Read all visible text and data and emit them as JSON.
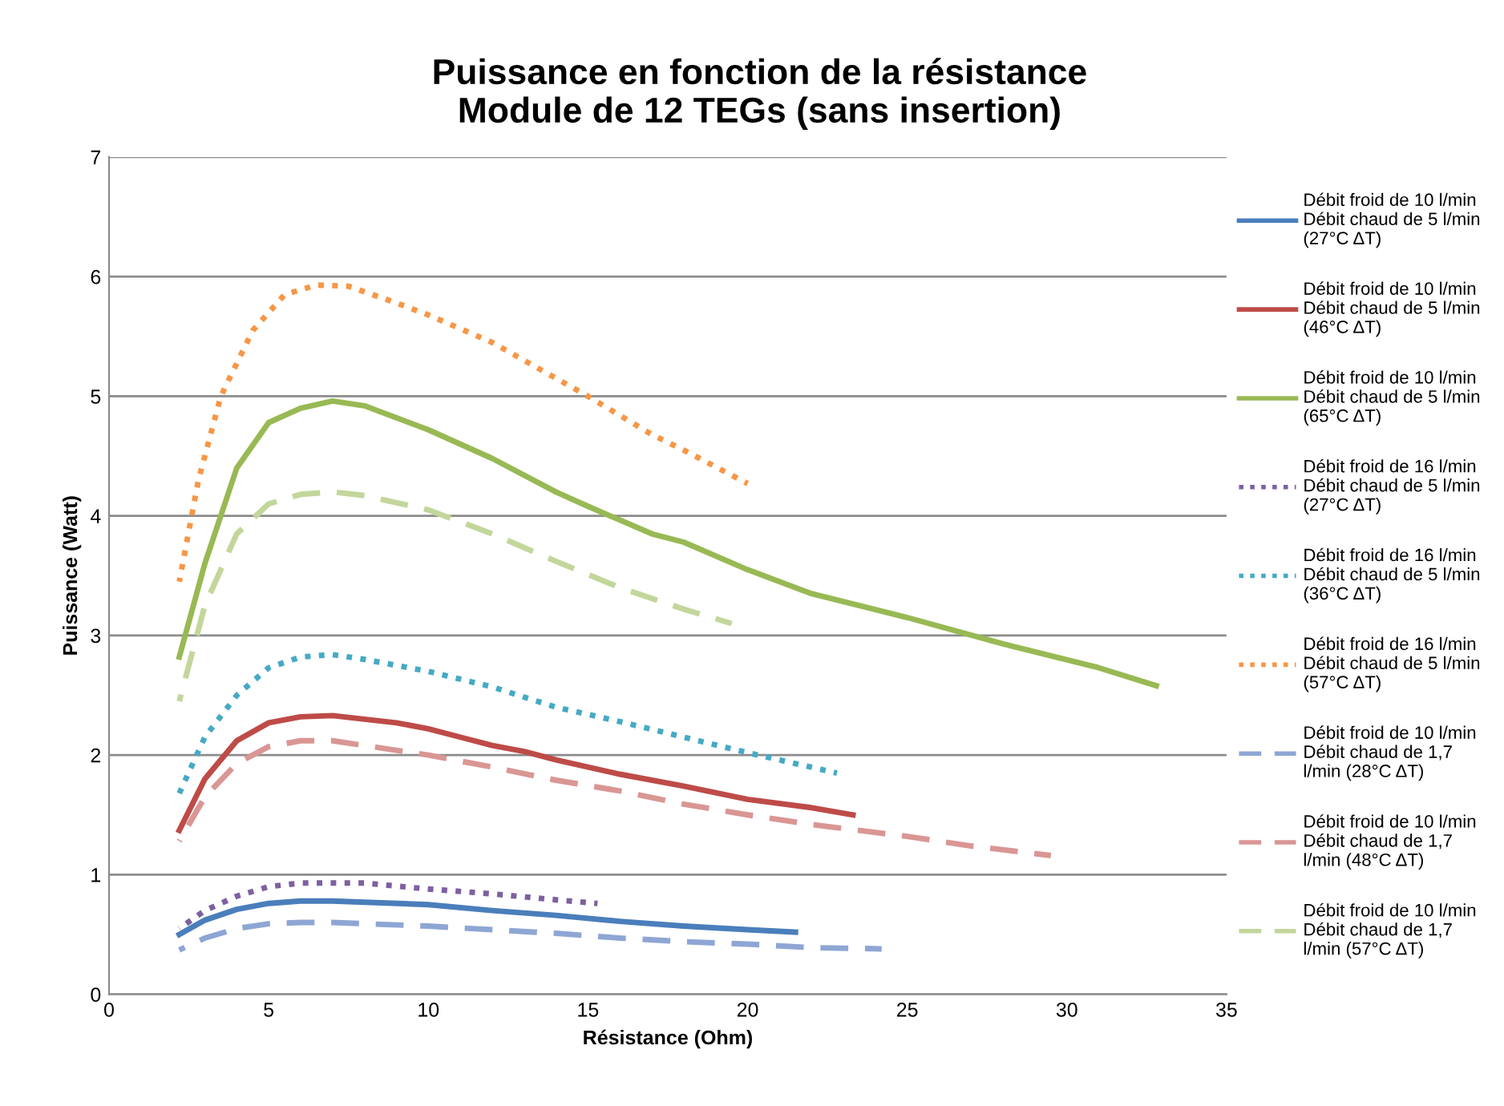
{
  "chart_data": {
    "type": "line",
    "title": "Puissance en fonction de la résistance\nModule de 12 TEGs (sans insertion)",
    "xlabel": "Résistance (Ohm)",
    "ylabel": "Puissance (Watt)",
    "xlim": [
      0,
      35
    ],
    "xticks": [
      0,
      5,
      10,
      15,
      20,
      25,
      30,
      35
    ],
    "ylim": [
      0,
      7
    ],
    "yticks": [
      0,
      1,
      2,
      3,
      4,
      5,
      6,
      7
    ],
    "grid": "y",
    "legend": "right",
    "marker": "none",
    "series": [
      {
        "name": "Débit froid de 10 l/min\nDébit chaud de 5 l/min\n(27°C ΔT)",
        "color": "#4a7ebb",
        "line_style": "solid",
        "x": [
          2.2,
          3,
          4,
          5,
          6,
          7,
          8,
          10,
          12,
          14,
          16,
          18,
          20,
          21.5
        ],
        "values": [
          0.5,
          0.62,
          0.71,
          0.76,
          0.78,
          0.78,
          0.77,
          0.75,
          0.7,
          0.66,
          0.61,
          0.57,
          0.54,
          0.52
        ]
      },
      {
        "name": "Débit froid de 10 l/min\nDébit chaud de 5 l/min\n(46°C ΔT)",
        "color": "#be4b48",
        "line_style": "solid",
        "x": [
          2.2,
          3,
          4,
          5,
          6,
          7,
          8,
          9,
          10,
          11,
          12,
          13,
          14,
          16,
          18,
          20,
          22,
          23.3
        ],
        "values": [
          1.37,
          1.8,
          2.12,
          2.27,
          2.32,
          2.33,
          2.3,
          2.27,
          2.22,
          2.15,
          2.08,
          2.03,
          1.96,
          1.84,
          1.74,
          1.63,
          1.56,
          1.5
        ]
      },
      {
        "name": "Débit froid de 10 l/min\nDébit chaud de 5 l/min\n(65°C ΔT)",
        "color": "#98b954",
        "line_style": "solid",
        "x": [
          2.2,
          3,
          4,
          5,
          6,
          7,
          8,
          9,
          10,
          12,
          14,
          15,
          17,
          18,
          20,
          22,
          25,
          28,
          31,
          32.8
        ],
        "values": [
          2.82,
          3.6,
          4.4,
          4.78,
          4.9,
          4.96,
          4.92,
          4.82,
          4.72,
          4.48,
          4.2,
          4.08,
          3.85,
          3.78,
          3.55,
          3.35,
          3.15,
          2.93,
          2.73,
          2.58
        ]
      },
      {
        "name": "Débit froid de 16 l/min\nDébit chaud de 5 l/min\n(27°C ΔT)",
        "color": "#7d60a0",
        "line_style": "dotted",
        "x": [
          2.2,
          3,
          4,
          5,
          6,
          7,
          8,
          10,
          12,
          14,
          15.3
        ],
        "values": [
          0.55,
          0.7,
          0.82,
          0.9,
          0.93,
          0.93,
          0.93,
          0.88,
          0.84,
          0.79,
          0.76
        ]
      },
      {
        "name": "Débit froid de 16 l/min\nDébit chaud de 5 l/min\n(36°C ΔT)",
        "color": "#46aac5",
        "line_style": "dotted",
        "x": [
          2.2,
          3,
          4,
          5,
          6,
          7,
          8,
          10,
          12,
          14,
          16,
          18,
          20,
          22.8
        ],
        "values": [
          1.68,
          2.15,
          2.5,
          2.73,
          2.82,
          2.84,
          2.8,
          2.7,
          2.57,
          2.4,
          2.28,
          2.15,
          2.02,
          1.85
        ]
      },
      {
        "name": "Débit froid de 16 l/min\nDébit chaud de 5 l/min\n(57°C ΔT)",
        "color": "#f79646",
        "line_style": "dotted",
        "x": [
          2.2,
          2.8,
          3.5,
          4.5,
          5.5,
          6.5,
          7.5,
          9,
          10,
          12,
          14,
          15,
          17,
          18,
          20
        ],
        "values": [
          3.45,
          4.3,
          5.0,
          5.55,
          5.85,
          5.93,
          5.92,
          5.78,
          5.68,
          5.45,
          5.15,
          5.0,
          4.68,
          4.55,
          4.27
        ]
      },
      {
        "name": "Débit froid de 10 l/min\nDébit chaud de 1,7\nl/min (28°C ΔT)",
        "color": "#8ea6d4",
        "line_style": "dashed",
        "x": [
          2.2,
          3,
          4,
          5,
          6,
          7,
          8,
          10,
          12,
          14,
          16,
          18,
          20,
          22,
          24.2
        ],
        "values": [
          0.37,
          0.47,
          0.55,
          0.59,
          0.6,
          0.6,
          0.59,
          0.57,
          0.54,
          0.51,
          0.47,
          0.44,
          0.42,
          0.39,
          0.38
        ]
      },
      {
        "name": "Débit froid de 10 l/min\nDébit chaud de 1,7\nl/min (48°C ΔT)",
        "color": "#d99694",
        "line_style": "dashed",
        "x": [
          2.2,
          3,
          4,
          5,
          6,
          7,
          8,
          10,
          12,
          14,
          16,
          18,
          20,
          22,
          25,
          27,
          29.5
        ],
        "values": [
          1.28,
          1.65,
          1.93,
          2.07,
          2.12,
          2.12,
          2.08,
          2.0,
          1.9,
          1.79,
          1.7,
          1.59,
          1.5,
          1.42,
          1.32,
          1.24,
          1.16
        ]
      },
      {
        "name": "Débit froid de 10 l/min\nDébit chaud de 1,7\nl/min (57°C ΔT)",
        "color": "#c3d69b",
        "line_style": "dashed",
        "x": [
          2.2,
          3,
          4,
          5,
          6,
          7,
          8,
          10,
          12,
          14,
          16,
          18,
          19.5
        ],
        "values": [
          2.45,
          3.25,
          3.85,
          4.1,
          4.18,
          4.2,
          4.17,
          4.05,
          3.85,
          3.62,
          3.4,
          3.22,
          3.1
        ]
      }
    ]
  }
}
